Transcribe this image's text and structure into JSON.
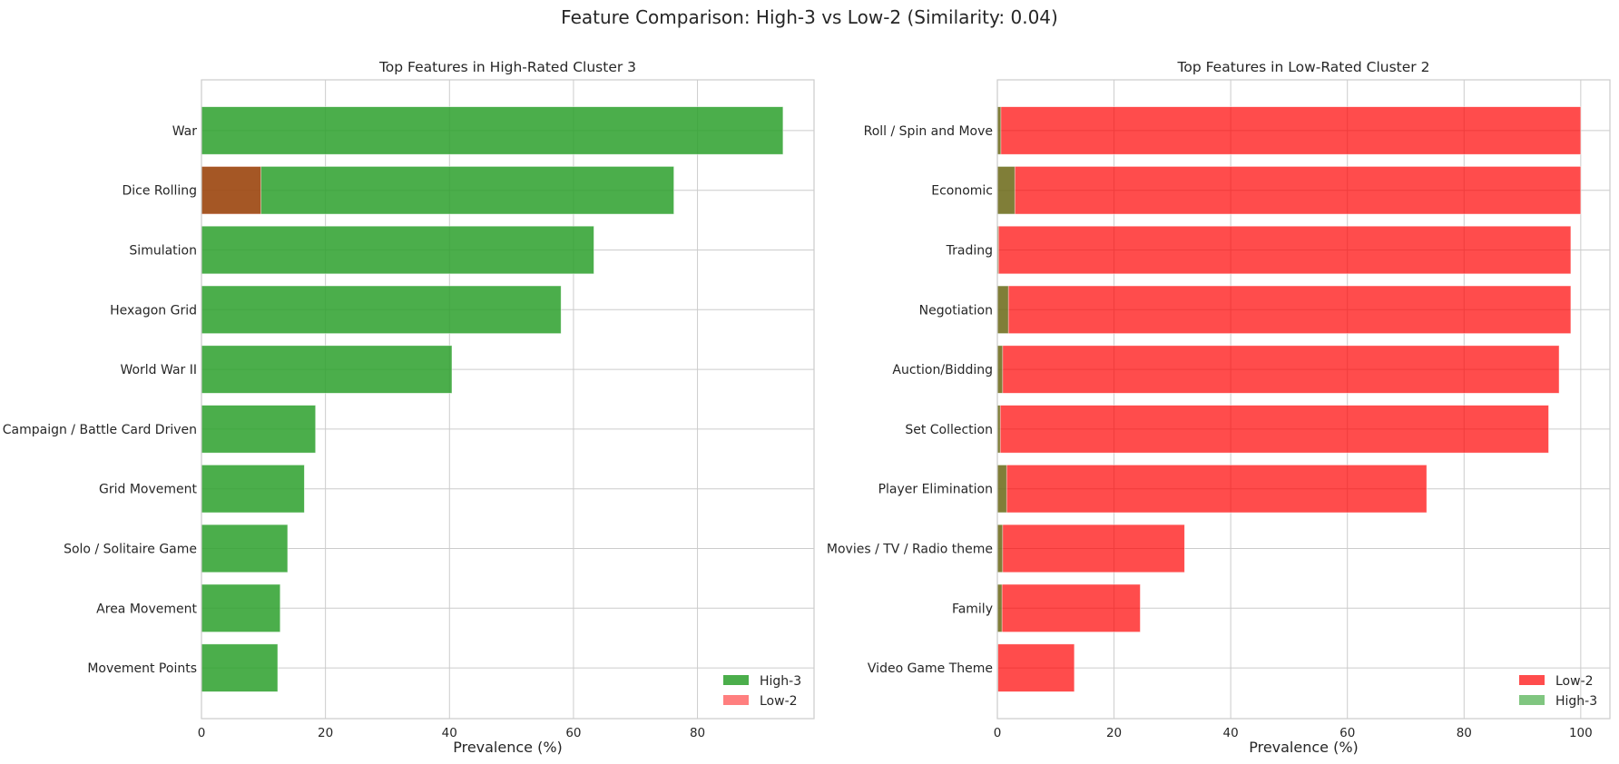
{
  "figure": {
    "suptitle": "Feature Comparison: High-3 vs Low-2 (Similarity: 0.04)"
  },
  "colors": {
    "high": "#2ca02c",
    "low": "#ff0000",
    "grid": "#cccccc",
    "spine": "#cccccc"
  },
  "chart_data": [
    {
      "type": "bar",
      "orientation": "horizontal",
      "title": "Top Features in High-Rated Cluster 3",
      "xlabel": "Prevalence (%)",
      "ylabel": "",
      "xlim": [
        0,
        98.8
      ],
      "xticks": [
        0,
        20,
        40,
        60,
        80
      ],
      "grid": true,
      "legend_position": "lower right",
      "categories": [
        "War",
        "Dice Rolling",
        "Simulation",
        "Hexagon Grid",
        "World War II",
        "Campaign / Battle Card Driven",
        "Grid Movement",
        "Solo / Solitaire Game",
        "Area Movement",
        "Movement Points"
      ],
      "series": [
        {
          "name": "High-3",
          "color": "#2ca02c",
          "opacity": 0.85,
          "values": [
            93.8,
            76.2,
            63.3,
            58.0,
            40.4,
            18.4,
            16.6,
            13.9,
            12.7,
            12.3
          ]
        },
        {
          "name": "Low-2",
          "color": "#ff0000",
          "opacity": 0.5,
          "values": [
            0,
            9.6,
            0,
            0,
            0,
            0,
            0,
            0,
            0,
            0
          ]
        }
      ]
    },
    {
      "type": "bar",
      "orientation": "horizontal",
      "title": "Top Features in Low-Rated Cluster 2",
      "xlabel": "Prevalence (%)",
      "ylabel": "",
      "xlim": [
        0,
        105
      ],
      "xticks": [
        0,
        20,
        40,
        60,
        80,
        100
      ],
      "grid": true,
      "legend_position": "lower right",
      "categories": [
        "Roll / Spin and Move",
        "Economic",
        "Trading",
        "Negotiation",
        "Auction/Bidding",
        "Set Collection",
        "Player Elimination",
        "Movies / TV / Radio theme",
        "Family",
        "Video Game Theme"
      ],
      "series": [
        {
          "name": "Low-2",
          "color": "#ff0000",
          "opacity": 0.7,
          "values": [
            100,
            100,
            98.3,
            98.3,
            96.3,
            94.5,
            73.6,
            32.1,
            24.5,
            13.2
          ]
        },
        {
          "name": "High-3",
          "color": "#2ca02c",
          "opacity": 0.6,
          "values": [
            0.6,
            3.0,
            0.2,
            1.9,
            0.9,
            0.5,
            1.6,
            0.9,
            0.8,
            0.1
          ]
        }
      ]
    }
  ]
}
